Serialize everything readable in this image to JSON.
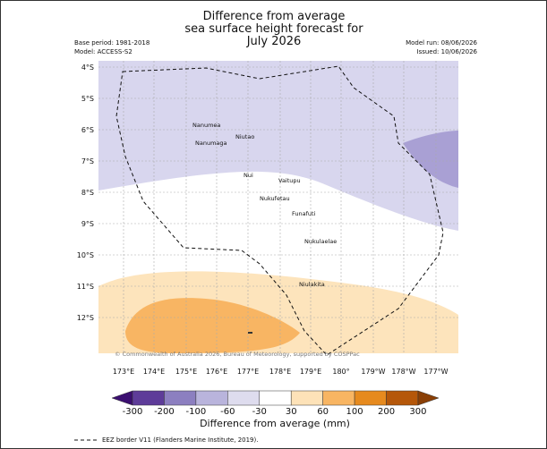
{
  "header": {
    "title_lines": [
      "Difference from average",
      "sea surface height forecast for",
      "July 2026"
    ],
    "base_period": "Base period: 1981-2018",
    "model": "Model: ACCESS-S2",
    "model_run": "Model run: 08/06/2026",
    "issued": "Issued: 10/06/2026"
  },
  "map": {
    "lat_labels": [
      "4°S",
      "5°S",
      "6°S",
      "7°S",
      "8°S",
      "9°S",
      "10°S",
      "11°S",
      "12°S"
    ],
    "lon_labels": [
      "173°E",
      "174°E",
      "175°E",
      "176°E",
      "177°E",
      "178°E",
      "179°E",
      "180°",
      "179°W",
      "178°W",
      "177°W"
    ],
    "islands": [
      "Nanumea",
      "Niutao",
      "Nanumaga",
      "Nui",
      "Vaitupu",
      "Nukufetau",
      "Funafuti",
      "Nukulaelae",
      "Niulakita"
    ],
    "copyright": "© Commonwealth of Australia 2026, Bureau of Meteorology, supported by COSPPac"
  },
  "colorbar": {
    "ticks": [
      -300,
      -200,
      -100,
      -60,
      -30,
      30,
      60,
      100,
      200,
      300
    ],
    "colors": [
      "#3b0f70",
      "#5e3c99",
      "#8c7fc0",
      "#b9b4dc",
      "#dedcee",
      "#ffffff",
      "#fde2b8",
      "#f8b562",
      "#e68a1e",
      "#b5570a",
      "#8a3f06"
    ],
    "label": "Difference from average (mm)"
  },
  "legend": {
    "eez": "EEZ border V11 (Flanders Marine Institute, 2019)."
  }
}
